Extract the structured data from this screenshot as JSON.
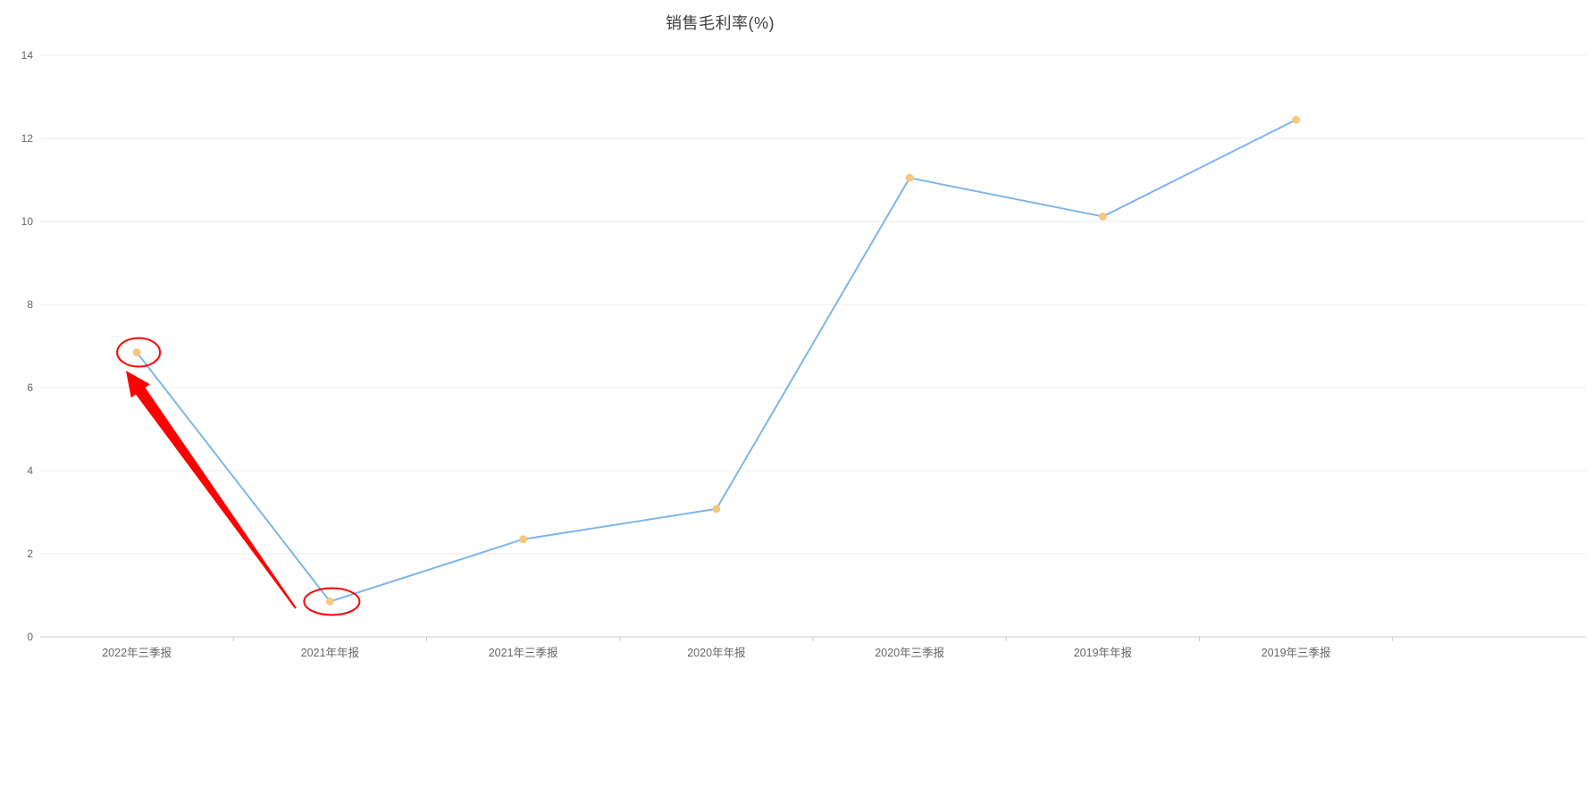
{
  "chart_data": {
    "type": "line",
    "title": "销售毛利率(%)",
    "categories": [
      "2022年三季报",
      "2021年年报",
      "2021年三季报",
      "2020年年报",
      "2020年三季报",
      "2019年年报",
      "2019年三季报"
    ],
    "values": [
      6.85,
      0.85,
      2.35,
      3.08,
      11.05,
      10.12,
      12.45
    ],
    "ylim": [
      0,
      14
    ],
    "yticks": [
      0,
      2,
      4,
      6,
      8,
      10,
      12,
      14
    ],
    "grid": true,
    "legend": "none",
    "line_color": "#7eb6e8",
    "marker_color": "#f6c87f",
    "axis_color": "#cccccc",
    "grid_color": "#ececec",
    "label_color": "#666666",
    "title_color": "#404040",
    "extra_slots": 1,
    "annotations": {
      "color": "#ff0000",
      "circled_point_indexes": [
        0,
        1
      ],
      "ellipse_sizes": [
        [
          24,
          16
        ],
        [
          31,
          15
        ]
      ],
      "arrow": {
        "tail": [
          331,
          681
        ],
        "tip": [
          141,
          415
        ]
      }
    }
  }
}
